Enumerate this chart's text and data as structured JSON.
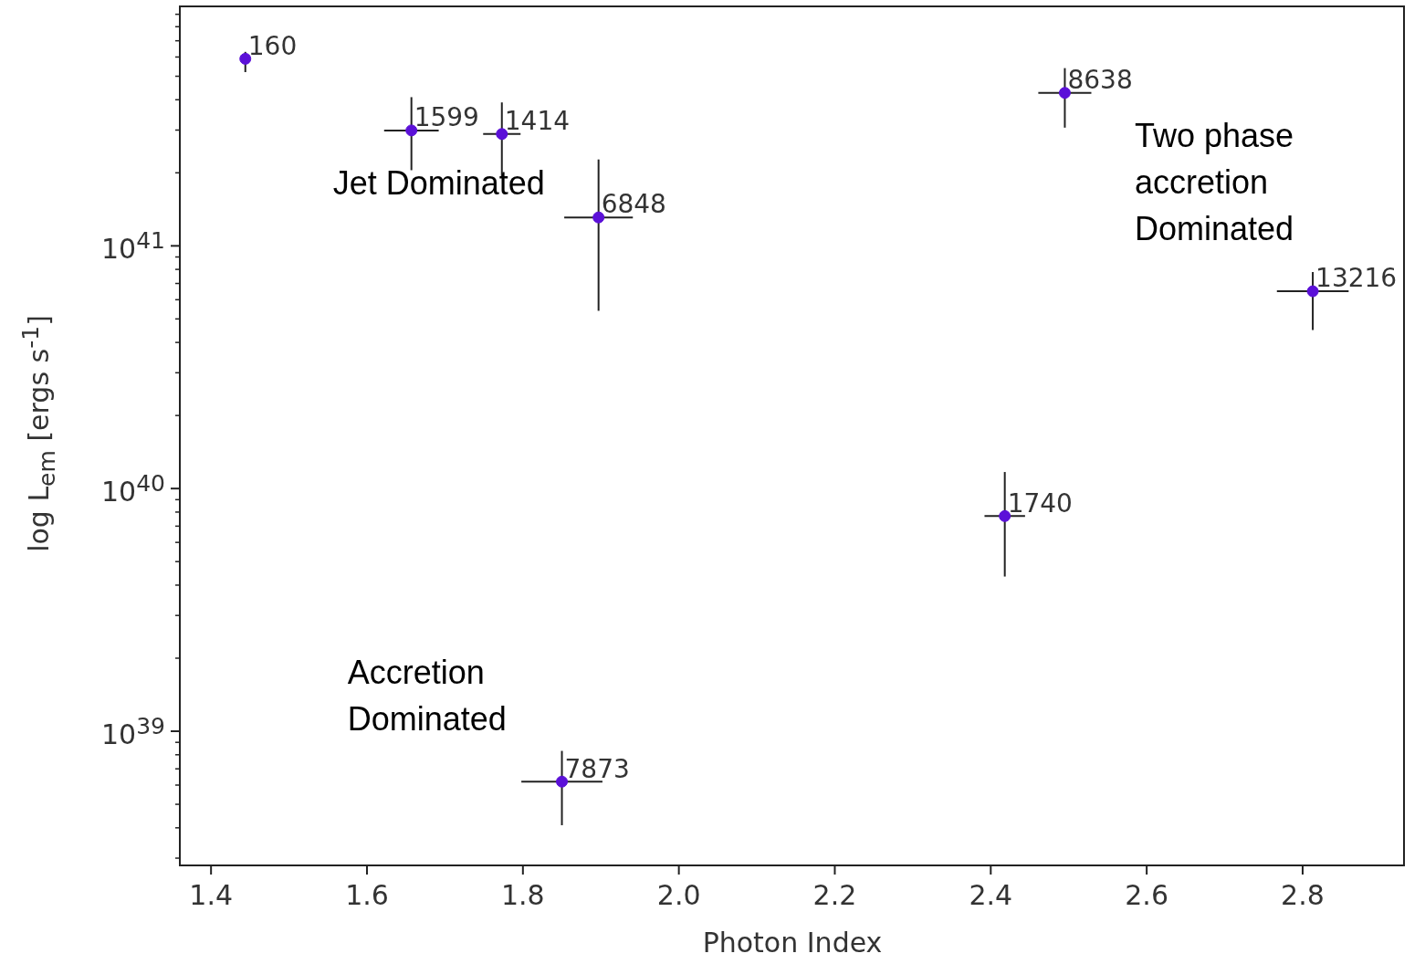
{
  "chart_data": {
    "type": "scatter",
    "xlabel": "Photon Index",
    "ylabel": "log L$_{em}$ [ergs s$^{-1}$]",
    "log": "y",
    "grid": false,
    "legend": false,
    "marker": "circle",
    "xlim": [
      1.36,
      2.93
    ],
    "xticks": [
      {
        "value": 1.4,
        "label": "1.4"
      },
      {
        "value": 1.6,
        "label": "1.6"
      },
      {
        "value": 1.8,
        "label": "1.8"
      },
      {
        "value": 2.0,
        "label": "2.0"
      },
      {
        "value": 2.2,
        "label": "2.2"
      },
      {
        "value": 2.4,
        "label": "2.4"
      },
      {
        "value": 2.6,
        "label": "2.6"
      },
      {
        "value": 2.8,
        "label": "2.8"
      }
    ],
    "ylim": [
      2.8e+38,
      9.7e+41
    ],
    "yticks": [
      {
        "value": 1e+39,
        "label": "10$^{39}$"
      },
      {
        "value": 1e+40,
        "label": "10$^{40}$"
      },
      {
        "value": 1e+41,
        "label": "10$^{41}$"
      },
      {
        "value": 3e+38,
        "label": null
      },
      {
        "value": 4e+38,
        "label": null
      },
      {
        "value": 5e+38,
        "label": null
      },
      {
        "value": 6e+38,
        "label": null
      },
      {
        "value": 7e+38,
        "label": null
      },
      {
        "value": 8e+38,
        "label": null
      },
      {
        "value": 9e+38,
        "label": null
      },
      {
        "value": 2e+39,
        "label": null
      },
      {
        "value": 3e+39,
        "label": null
      },
      {
        "value": 4e+39,
        "label": null
      },
      {
        "value": 5e+39,
        "label": null
      },
      {
        "value": 6e+39,
        "label": null
      },
      {
        "value": 7e+39,
        "label": null
      },
      {
        "value": 8e+39,
        "label": null
      },
      {
        "value": 9e+39,
        "label": null
      },
      {
        "value": 2e+40,
        "label": null
      },
      {
        "value": 3e+40,
        "label": null
      },
      {
        "value": 4e+40,
        "label": null
      },
      {
        "value": 5e+40,
        "label": null
      },
      {
        "value": 6e+40,
        "label": null
      },
      {
        "value": 7e+40,
        "label": null
      },
      {
        "value": 8e+40,
        "label": null
      },
      {
        "value": 9e+40,
        "label": null
      },
      {
        "value": 2e+41,
        "label": null
      },
      {
        "value": 3e+41,
        "label": null
      },
      {
        "value": 4e+41,
        "label": null
      },
      {
        "value": 5e+41,
        "label": null
      },
      {
        "value": 6e+41,
        "label": null
      },
      {
        "value": 7e+41,
        "label": null
      },
      {
        "value": 8e+41,
        "label": null
      },
      {
        "value": 9e+41,
        "label": null
      }
    ],
    "series": [
      {
        "color": "#5b10d8",
        "x": [
          1.444,
          1.657,
          1.773,
          1.897,
          2.495,
          2.813,
          2.418,
          1.85
        ],
        "values": [
          5.9e+41,
          2.99e+41,
          2.89e+41,
          1.31e+41,
          4.27e+41,
          6.5e+40,
          7.7e+39,
          6.2e+38
        ],
        "errors": [
          [
            5.2e+41,
            6.3e+41
          ],
          [
            2.05e+41,
            4.1e+41
          ],
          [
            1.93e+41,
            3.9e+41
          ],
          [
            5.4e+40,
            2.27e+41
          ],
          [
            3.07e+41,
            5.4e+41
          ],
          [
            4.5e+40,
            7.8e+40
          ],
          [
            4.34e+39,
            1.17e+40
          ],
          [
            4.1e+38,
            8.3e+38
          ]
        ],
        "xerrors": [
          0.005,
          0.035,
          0.024,
          0.044,
          0.034,
          0.046,
          0.026,
          0.052
        ]
      }
    ],
    "annotations": [
      {
        "text": "160",
        "x": 1.444,
        "y": 5.9e+41
      },
      {
        "text": "1599",
        "x": 1.657,
        "y": 2.99e+41
      },
      {
        "text": "1414",
        "x": 1.773,
        "y": 2.89e+41
      },
      {
        "text": "6848",
        "x": 1.897,
        "y": 1.31e+41
      },
      {
        "text": "8638",
        "x": 2.495,
        "y": 4.27e+41
      },
      {
        "text": "13216",
        "x": 2.813,
        "y": 6.5e+40
      },
      {
        "text": "1740",
        "x": 2.418,
        "y": 7.7e+39
      },
      {
        "text": "7873",
        "x": 1.85,
        "y": 6.2e+38
      },
      "Jet Dominated",
      "Two phase\naccretion\nDominated",
      "Accretion\nDominated"
    ]
  }
}
